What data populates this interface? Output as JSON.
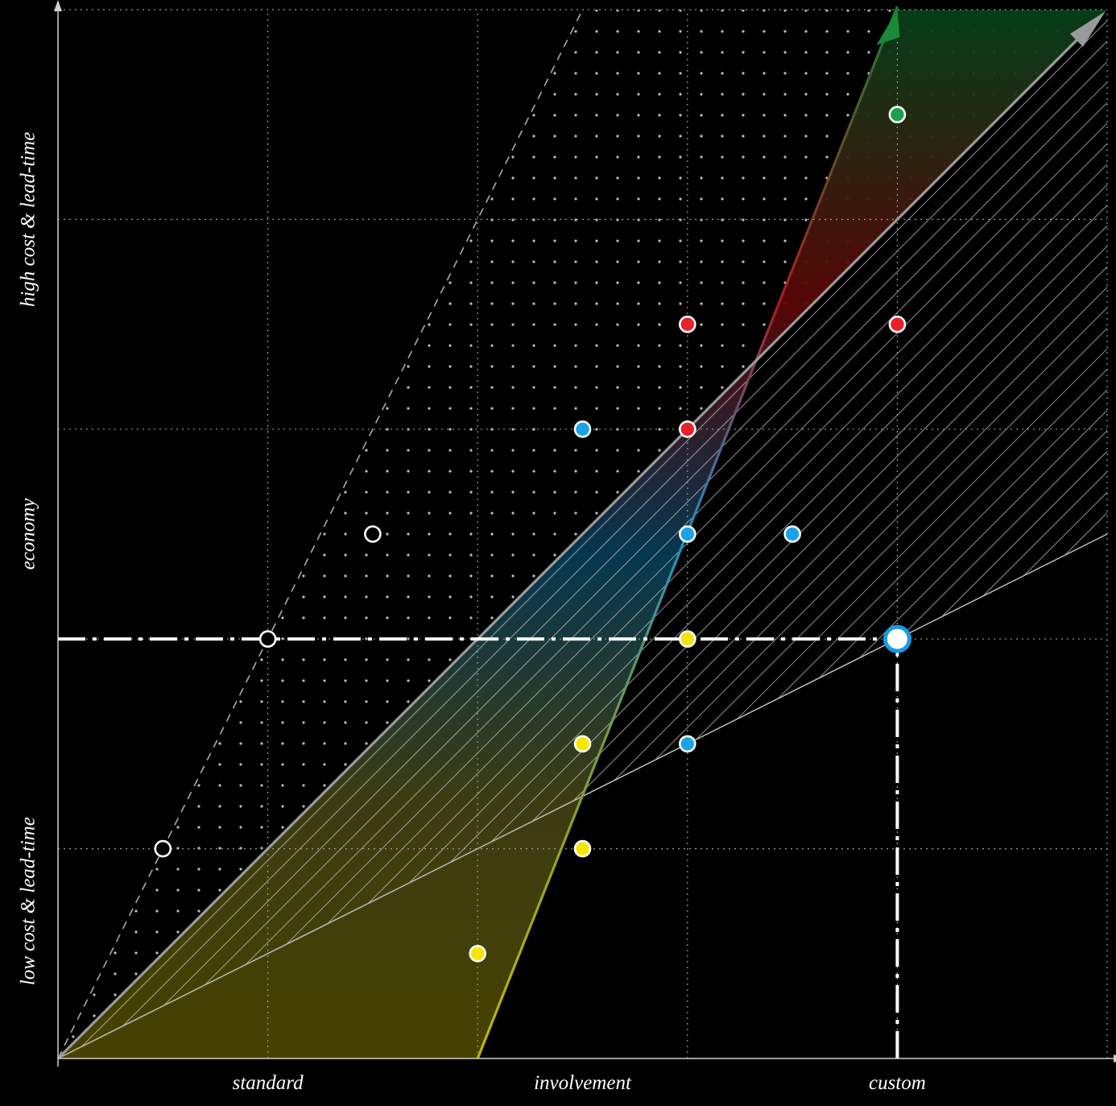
{
  "chart_data": {
    "type": "scatter",
    "title": "",
    "xlabel": "",
    "ylabel": "",
    "xlim": [
      0,
      5
    ],
    "ylim": [
      0,
      5
    ],
    "grid": true,
    "x_tick_labels": [
      {
        "x": 1,
        "label": "standard"
      },
      {
        "x": 2.5,
        "label": "involvement"
      },
      {
        "x": 4,
        "label": "custom"
      }
    ],
    "y_tick_labels": [
      {
        "y": 0.75,
        "label": "low cost & lead-time"
      },
      {
        "y": 2.5,
        "label": "economy"
      },
      {
        "y": 4.0,
        "label": "high cost & lead-time"
      }
    ],
    "reference_point": {
      "x": 4,
      "y": 2,
      "color": "#1a9ae6"
    },
    "reference_lines": [
      {
        "orientation": "horizontal",
        "y": 2,
        "from_x": 0,
        "to_x": 4
      },
      {
        "orientation": "vertical",
        "x": 4,
        "from_y": 0,
        "to_y": 2
      }
    ],
    "diagonal_line": {
      "x": [
        0,
        5
      ],
      "y": [
        0,
        5
      ]
    },
    "dashed_line": {
      "x": [
        0,
        2.5
      ],
      "y": [
        0,
        5
      ]
    },
    "hatched_band": {
      "upper": {
        "x": [
          0,
          5
        ],
        "y": [
          0,
          5
        ]
      },
      "lower": {
        "x": [
          0,
          5
        ],
        "y": [
          0,
          2.5
        ]
      }
    },
    "dotted_region": {
      "x": [
        [
          0,
          0
        ],
        [
          2.5,
          5
        ],
        [
          5,
          5
        ],
        [
          2,
          2
        ]
      ]
    },
    "arrows": [
      {
        "name": "green",
        "color": "#1b8a3a",
        "from": [
          2,
          0
        ],
        "to": [
          4,
          5
        ]
      },
      {
        "name": "gray",
        "color": "#9a9a9a",
        "from": [
          0,
          0
        ],
        "to": [
          5,
          5
        ]
      }
    ],
    "series": [
      {
        "color": "#f5e600",
        "points": [
          [
            2,
            0.5
          ],
          [
            2.5,
            1
          ],
          [
            2.5,
            1.5
          ],
          [
            3,
            2
          ]
        ]
      },
      {
        "color": "#1aa3e8",
        "points": [
          [
            2.5,
            3
          ],
          [
            3,
            2.5
          ],
          [
            3,
            1.5
          ],
          [
            3.5,
            2.5
          ]
        ]
      },
      {
        "color": "#e8202a",
        "points": [
          [
            3,
            3
          ],
          [
            3,
            3.5
          ],
          [
            4,
            3.5
          ]
        ]
      },
      {
        "color": "#1aa04a",
        "points": [
          [
            4,
            4.5
          ]
        ]
      },
      {
        "color": "#000000",
        "points": [
          [
            0.5,
            1
          ],
          [
            1,
            2
          ],
          [
            1.5,
            2.5
          ]
        ]
      }
    ]
  }
}
